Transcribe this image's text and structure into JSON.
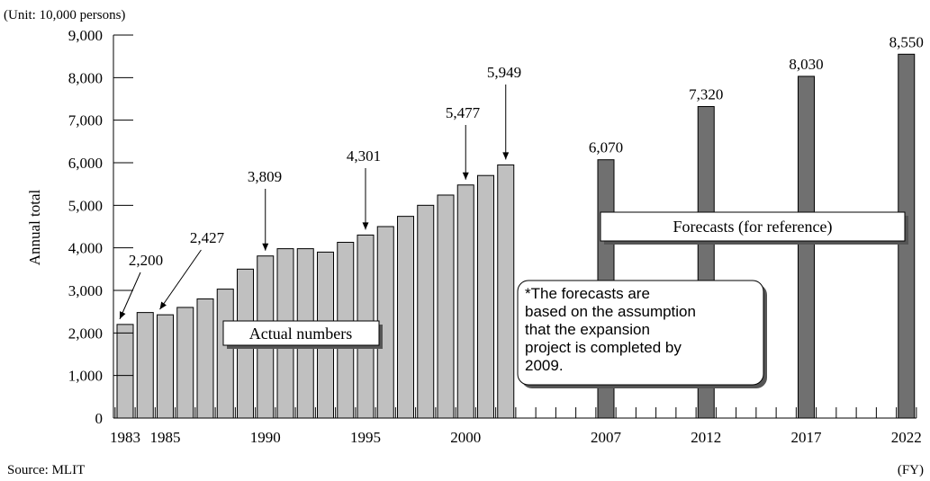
{
  "chart_data": {
    "type": "bar",
    "unit_label": "(Unit: 10,000 persons)",
    "ylabel": "Annual total",
    "xlabel": "(FY)",
    "source": "Source: MLIT",
    "ylim": [
      0,
      9000
    ],
    "yticks": [
      {
        "value": 0,
        "label": "0"
      },
      {
        "value": 1000,
        "label": "1,000"
      },
      {
        "value": 2000,
        "label": "2,000"
      },
      {
        "value": 3000,
        "label": "3,000"
      },
      {
        "value": 4000,
        "label": "4,000"
      },
      {
        "value": 5000,
        "label": "5,000"
      },
      {
        "value": 6000,
        "label": "6,000"
      },
      {
        "value": 7000,
        "label": "7,000"
      },
      {
        "value": 8000,
        "label": "8,000"
      },
      {
        "value": 9000,
        "label": "9,000"
      }
    ],
    "xrange": [
      1983,
      2022
    ],
    "xtick_labels": [
      {
        "year": 1983,
        "label": "1983"
      },
      {
        "year": 1985,
        "label": "1985"
      },
      {
        "year": 1990,
        "label": "1990"
      },
      {
        "year": 1995,
        "label": "1995"
      },
      {
        "year": 2000,
        "label": "2000"
      },
      {
        "year": 2007,
        "label": "2007"
      },
      {
        "year": 2012,
        "label": "2012"
      },
      {
        "year": 2017,
        "label": "2017"
      },
      {
        "year": 2022,
        "label": "2022"
      }
    ],
    "series": [
      {
        "name": "Actual numbers",
        "color": "#c0c0c0",
        "points": [
          {
            "year": 1983,
            "value": 2200
          },
          {
            "year": 1984,
            "value": 2480
          },
          {
            "year": 1985,
            "value": 2427
          },
          {
            "year": 1986,
            "value": 2600
          },
          {
            "year": 1987,
            "value": 2800
          },
          {
            "year": 1988,
            "value": 3030
          },
          {
            "year": 1989,
            "value": 3500
          },
          {
            "year": 1990,
            "value": 3809
          },
          {
            "year": 1991,
            "value": 3980
          },
          {
            "year": 1992,
            "value": 3980
          },
          {
            "year": 1993,
            "value": 3900
          },
          {
            "year": 1994,
            "value": 4130
          },
          {
            "year": 1995,
            "value": 4301
          },
          {
            "year": 1996,
            "value": 4500
          },
          {
            "year": 1997,
            "value": 4740
          },
          {
            "year": 1998,
            "value": 5000
          },
          {
            "year": 1999,
            "value": 5240
          },
          {
            "year": 2000,
            "value": 5477
          },
          {
            "year": 2001,
            "value": 5700
          },
          {
            "year": 2002,
            "value": 5949
          }
        ]
      },
      {
        "name": "Forecasts (for reference)",
        "color": "#707070",
        "points": [
          {
            "year": 2007,
            "value": 6070
          },
          {
            "year": 2012,
            "value": 7320
          },
          {
            "year": 2017,
            "value": 8030
          },
          {
            "year": 2022,
            "value": 8550
          }
        ]
      }
    ],
    "value_labels": [
      {
        "year": 1983,
        "text": "2,200",
        "arrow": true
      },
      {
        "year": 1985,
        "text": "2,427",
        "arrow": true
      },
      {
        "year": 1990,
        "text": "3,809",
        "arrow": true
      },
      {
        "year": 1995,
        "text": "4,301",
        "arrow": true
      },
      {
        "year": 2000,
        "text": "5,477",
        "arrow": true
      },
      {
        "year": 2002,
        "text": "5,949",
        "arrow": true
      },
      {
        "year": 2007,
        "text": "6,070",
        "arrow": false
      },
      {
        "year": 2012,
        "text": "7,320",
        "arrow": false
      },
      {
        "year": 2017,
        "text": "8,030",
        "arrow": false
      },
      {
        "year": 2022,
        "text": "8,550",
        "arrow": false
      }
    ],
    "annotations": {
      "actual_box": "Actual numbers",
      "forecast_box": "Forecasts (for reference)",
      "note_lines": [
        "*The forecasts are",
        "based on the assumption",
        "that the  expansion",
        "project is completed by",
        "2009."
      ]
    }
  }
}
